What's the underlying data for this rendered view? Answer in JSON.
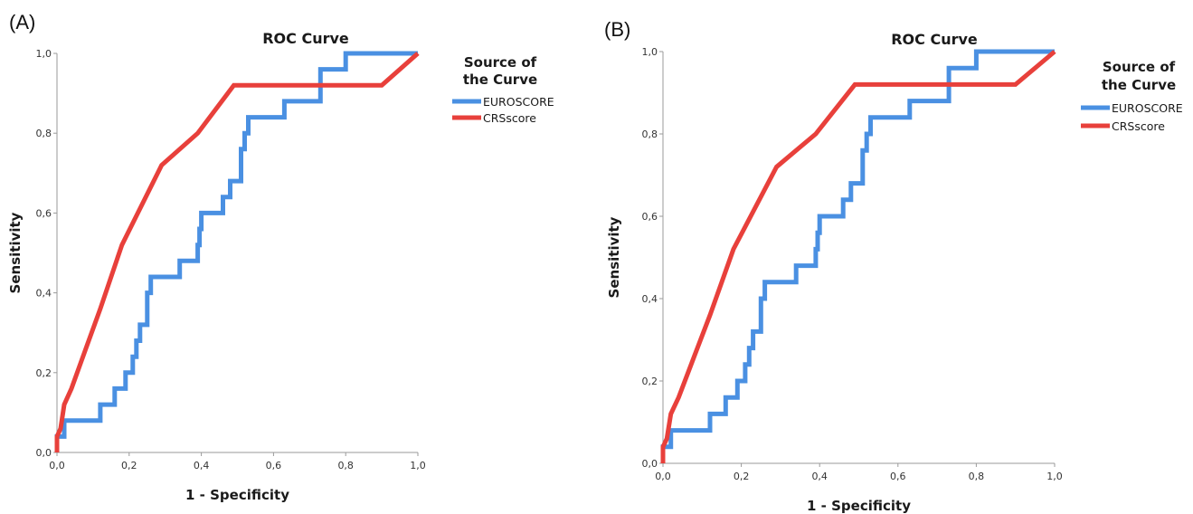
{
  "chart_data": [
    {
      "panel_label": "(A)",
      "type": "line",
      "title": "ROC Curve",
      "xlabel": "1 - Specificity",
      "ylabel": "Sensitivity",
      "xlim": [
        0,
        1
      ],
      "ylim": [
        0,
        1
      ],
      "xticks": [
        "0,0",
        "0,2",
        "0,4",
        "0,6",
        "0,8",
        "1,0"
      ],
      "yticks": [
        "0,0",
        "0,2",
        "0,4",
        "0,6",
        "0,8",
        "1,0"
      ],
      "grid": false,
      "legend_title_lines": [
        "Source of",
        "the Curve"
      ],
      "legend_position": "right",
      "series": [
        {
          "name": "EUROSCORE",
          "color": "#4a90e2",
          "points": [
            [
              0,
              0
            ],
            [
              0,
              0.04
            ],
            [
              0.02,
              0.04
            ],
            [
              0.02,
              0.08
            ],
            [
              0.12,
              0.08
            ],
            [
              0.12,
              0.12
            ],
            [
              0.16,
              0.12
            ],
            [
              0.16,
              0.16
            ],
            [
              0.19,
              0.16
            ],
            [
              0.19,
              0.2
            ],
            [
              0.21,
              0.2
            ],
            [
              0.21,
              0.24
            ],
            [
              0.22,
              0.24
            ],
            [
              0.22,
              0.28
            ],
            [
              0.23,
              0.28
            ],
            [
              0.23,
              0.32
            ],
            [
              0.25,
              0.32
            ],
            [
              0.25,
              0.4
            ],
            [
              0.26,
              0.4
            ],
            [
              0.26,
              0.44
            ],
            [
              0.34,
              0.44
            ],
            [
              0.34,
              0.48
            ],
            [
              0.39,
              0.48
            ],
            [
              0.39,
              0.52
            ],
            [
              0.395,
              0.52
            ],
            [
              0.395,
              0.56
            ],
            [
              0.4,
              0.56
            ],
            [
              0.4,
              0.6
            ],
            [
              0.46,
              0.6
            ],
            [
              0.46,
              0.64
            ],
            [
              0.48,
              0.64
            ],
            [
              0.48,
              0.68
            ],
            [
              0.51,
              0.68
            ],
            [
              0.51,
              0.76
            ],
            [
              0.52,
              0.76
            ],
            [
              0.52,
              0.8
            ],
            [
              0.53,
              0.8
            ],
            [
              0.53,
              0.84
            ],
            [
              0.63,
              0.84
            ],
            [
              0.63,
              0.88
            ],
            [
              0.73,
              0.88
            ],
            [
              0.73,
              0.96
            ],
            [
              0.8,
              0.96
            ],
            [
              0.8,
              1.0
            ],
            [
              1.0,
              1.0
            ]
          ]
        },
        {
          "name": "CRSscore",
          "color": "#e8403b",
          "points": [
            [
              0,
              0
            ],
            [
              0,
              0.04
            ],
            [
              0.01,
              0.06
            ],
            [
              0.02,
              0.12
            ],
            [
              0.04,
              0.16
            ],
            [
              0.08,
              0.26
            ],
            [
              0.12,
              0.36
            ],
            [
              0.18,
              0.52
            ],
            [
              0.29,
              0.72
            ],
            [
              0.39,
              0.8
            ],
            [
              0.49,
              0.92
            ],
            [
              0.9,
              0.92
            ],
            [
              1.0,
              1.0
            ]
          ]
        }
      ]
    },
    {
      "panel_label": "(B)",
      "type": "line",
      "title": "ROC Curve",
      "xlabel": "1 - Specificity",
      "ylabel": "Sensitivity",
      "xlim": [
        0,
        1
      ],
      "ylim": [
        0,
        1
      ],
      "xticks": [
        "0,0",
        "0,2",
        "0,4",
        "0,6",
        "0,8",
        "1,0"
      ],
      "yticks": [
        "0,0",
        "0,2",
        "0,4",
        "0,6",
        "0,8",
        "1,0"
      ],
      "grid": false,
      "legend_title_lines": [
        "Source of",
        "the Curve"
      ],
      "legend_position": "right",
      "series": [
        {
          "name": "EUROSCORE",
          "color": "#4a90e2",
          "points": [
            [
              0,
              0
            ],
            [
              0,
              0.04
            ],
            [
              0.02,
              0.04
            ],
            [
              0.02,
              0.08
            ],
            [
              0.12,
              0.08
            ],
            [
              0.12,
              0.12
            ],
            [
              0.16,
              0.12
            ],
            [
              0.16,
              0.16
            ],
            [
              0.19,
              0.16
            ],
            [
              0.19,
              0.2
            ],
            [
              0.21,
              0.2
            ],
            [
              0.21,
              0.24
            ],
            [
              0.22,
              0.24
            ],
            [
              0.22,
              0.28
            ],
            [
              0.23,
              0.28
            ],
            [
              0.23,
              0.32
            ],
            [
              0.25,
              0.32
            ],
            [
              0.25,
              0.4
            ],
            [
              0.26,
              0.4
            ],
            [
              0.26,
              0.44
            ],
            [
              0.34,
              0.44
            ],
            [
              0.34,
              0.48
            ],
            [
              0.39,
              0.48
            ],
            [
              0.39,
              0.52
            ],
            [
              0.395,
              0.52
            ],
            [
              0.395,
              0.56
            ],
            [
              0.4,
              0.56
            ],
            [
              0.4,
              0.6
            ],
            [
              0.46,
              0.6
            ],
            [
              0.46,
              0.64
            ],
            [
              0.48,
              0.64
            ],
            [
              0.48,
              0.68
            ],
            [
              0.51,
              0.68
            ],
            [
              0.51,
              0.76
            ],
            [
              0.52,
              0.76
            ],
            [
              0.52,
              0.8
            ],
            [
              0.53,
              0.8
            ],
            [
              0.53,
              0.84
            ],
            [
              0.63,
              0.84
            ],
            [
              0.63,
              0.88
            ],
            [
              0.73,
              0.88
            ],
            [
              0.73,
              0.96
            ],
            [
              0.8,
              0.96
            ],
            [
              0.8,
              1.0
            ],
            [
              1.0,
              1.0
            ]
          ]
        },
        {
          "name": "CRSscore",
          "color": "#e8403b",
          "points": [
            [
              0,
              0
            ],
            [
              0,
              0.04
            ],
            [
              0.01,
              0.06
            ],
            [
              0.02,
              0.12
            ],
            [
              0.04,
              0.16
            ],
            [
              0.08,
              0.26
            ],
            [
              0.12,
              0.36
            ],
            [
              0.18,
              0.52
            ],
            [
              0.29,
              0.72
            ],
            [
              0.39,
              0.8
            ],
            [
              0.49,
              0.92
            ],
            [
              0.9,
              0.92
            ],
            [
              1.0,
              1.0
            ]
          ]
        }
      ]
    }
  ]
}
